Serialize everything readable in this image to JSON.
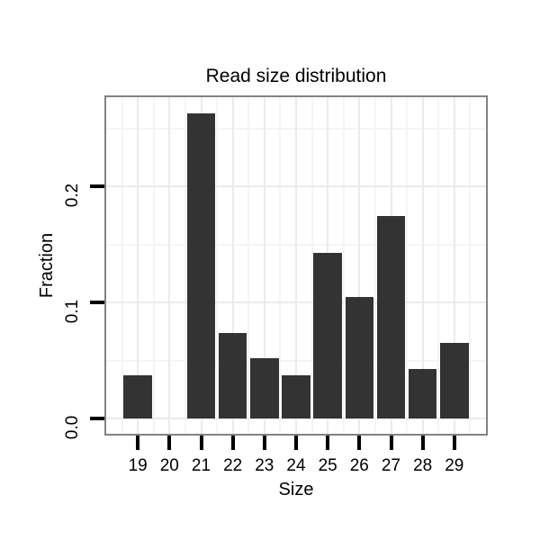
{
  "chart_data": {
    "type": "bar",
    "title": "Read size distribution",
    "xlabel": "Size",
    "ylabel": "Fraction",
    "categories": [
      19,
      20,
      21,
      22,
      23,
      24,
      25,
      26,
      27,
      28,
      29
    ],
    "values": [
      0.037,
      0,
      0.263,
      0.074,
      0.052,
      0.037,
      0.143,
      0.105,
      0.175,
      0.043,
      0.065
    ],
    "x_tick_labels": [
      "19",
      "20",
      "21",
      "22",
      "23",
      "24",
      "25",
      "26",
      "27",
      "28",
      "29"
    ],
    "y_ticks": [
      {
        "value": 0.0,
        "label": "0.0"
      },
      {
        "value": 0.1,
        "label": "0.1"
      },
      {
        "value": 0.2,
        "label": "0.2"
      }
    ],
    "xlim": [
      18,
      30
    ],
    "ylim": [
      -0.0132,
      0.2772
    ],
    "bar_width_data": 0.9,
    "grid": true,
    "legend": null,
    "colors": {
      "bar_fill": "#333333",
      "panel_border": "#828282",
      "grid_major": "#ebebeb",
      "grid_minor": "#f5f5f5",
      "tick": "#000000",
      "text": "#000000"
    }
  }
}
